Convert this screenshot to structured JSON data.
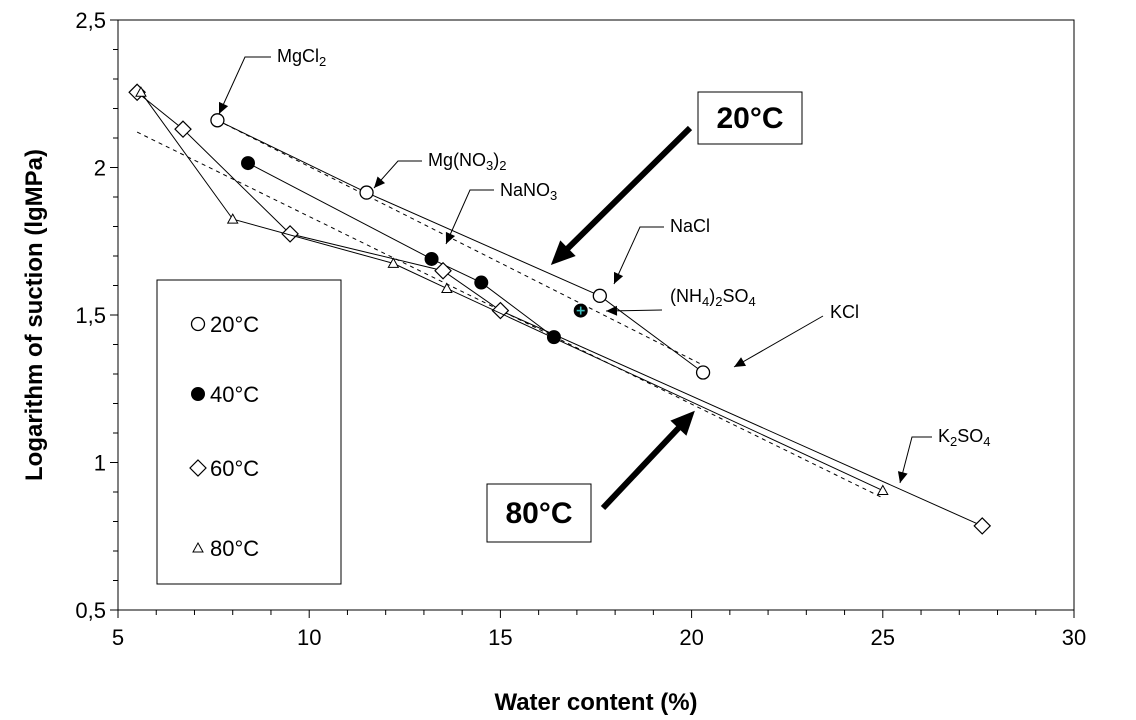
{
  "chart_data": {
    "type": "scatter",
    "xlabel": "Water content (%)",
    "ylabel": "Logarithm of suction (lgMPa)",
    "xlim": [
      5,
      30
    ],
    "ylim": [
      0.5,
      2.5
    ],
    "x_ticks": [
      "5",
      "10",
      "15",
      "20",
      "25",
      "30"
    ],
    "y_ticks": [
      "0,5",
      "1",
      "1,5",
      "2",
      "2,5"
    ],
    "grid": false,
    "legend_position": "left",
    "series": [
      {
        "name": "20°C",
        "marker": "circle-open",
        "connected": true,
        "x": [
          7.6,
          11.5,
          17.6,
          20.3
        ],
        "y": [
          2.16,
          1.915,
          1.565,
          1.305
        ]
      },
      {
        "name": "40°C",
        "marker": "circle-filled",
        "connected": true,
        "x": [
          8.4,
          13.2,
          14.5,
          16.4
        ],
        "y": [
          2.015,
          1.69,
          1.61,
          1.425
        ]
      },
      {
        "name": "60°C",
        "marker": "diamond-open",
        "connected": true,
        "x": [
          5.5,
          6.7,
          9.5,
          13.5,
          15.0,
          27.6
        ],
        "y": [
          2.255,
          2.13,
          1.775,
          1.65,
          1.515,
          0.785
        ]
      },
      {
        "name": "80°C",
        "marker": "triangle-open",
        "connected": true,
        "x": [
          5.6,
          8.0,
          12.2,
          13.6,
          25.0
        ],
        "y": [
          2.255,
          1.825,
          1.675,
          1.59,
          0.905
        ]
      }
    ],
    "extra_points": [
      {
        "label": "(NH4)2SO4",
        "x": 17.1,
        "y": 1.515,
        "marker": "cross-teal"
      }
    ],
    "trend_lines": [
      {
        "name": "20°C",
        "x": [
          7.6,
          20.3
        ],
        "y": [
          2.16,
          1.33
        ]
      },
      {
        "name": "80°C",
        "x": [
          5.5,
          25.0
        ],
        "y": [
          2.12,
          0.88
        ]
      }
    ],
    "annotations": [
      {
        "text": "MgCl2",
        "formula": [
          "MgCl",
          "2"
        ]
      },
      {
        "text": "Mg(NO3)2",
        "formula": [
          "Mg(NO",
          "3",
          ")",
          "2"
        ]
      },
      {
        "text": "NaNO3",
        "formula": [
          "NaNO",
          "3"
        ]
      },
      {
        "text": "NaCl",
        "formula": [
          "NaCl"
        ]
      },
      {
        "text": "(NH4)2SO4",
        "formula": [
          "(NH",
          "4",
          ")",
          "2",
          "SO",
          "4"
        ]
      },
      {
        "text": "KCl",
        "formula": [
          "KCl"
        ]
      },
      {
        "text": "K2SO4",
        "formula": [
          "K",
          "2",
          "SO",
          "4"
        ]
      }
    ],
    "boxes": [
      "20°C",
      "80°C"
    ]
  }
}
